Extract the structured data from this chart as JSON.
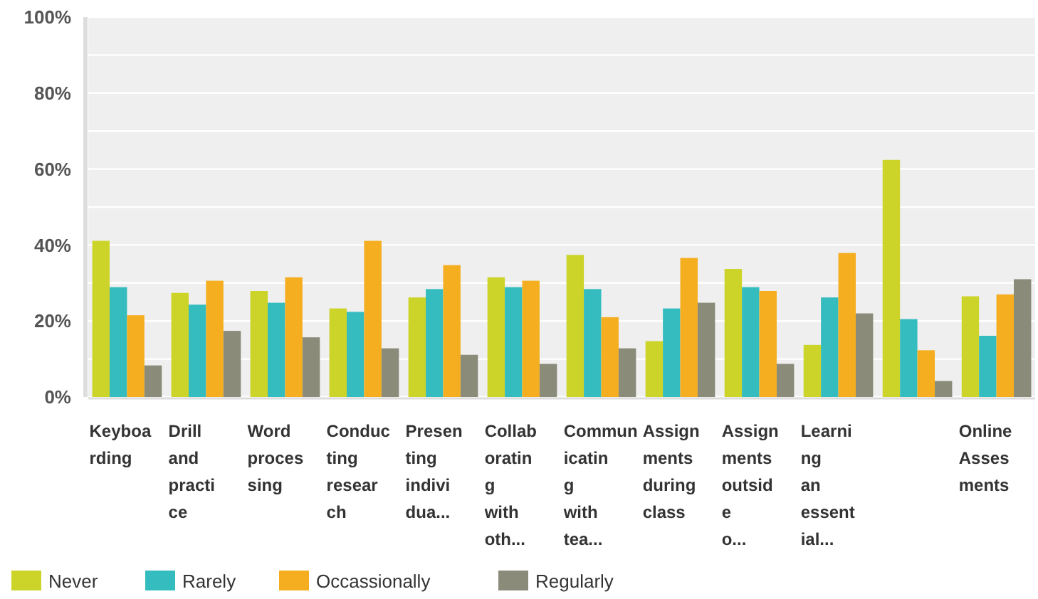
{
  "chart_data": {
    "type": "bar",
    "categories": [
      "Keyboa\nrding",
      "Drill\nand\npracti\nce",
      "Word\nproces\nsing",
      "Conduc\nting\nresear\nch",
      "Presen\nting\nindivi\ndua...",
      "Collab\noratin\ng\nwith\noth...",
      "Commun\nicatin\ng\nwith\ntea...",
      "Assign\nments\nduring\nclass",
      "Assign\nments\noutsid\ne\no...",
      "Learni\nng\nan\nessent\nial...",
      null,
      "Online\nAsses\nments"
    ],
    "series": [
      {
        "name": "Never",
        "color": "#ccd42a",
        "values": [
          41.1,
          27.4,
          27.9,
          23.3,
          26.2,
          31.5,
          37.4,
          14.7,
          33.7,
          13.7,
          62.4,
          26.5
        ]
      },
      {
        "name": "Rarely",
        "color": "#35bcbf",
        "values": [
          28.9,
          24.3,
          24.8,
          22.4,
          28.4,
          28.9,
          28.4,
          23.3,
          28.9,
          26.2,
          20.5,
          16.1
        ]
      },
      {
        "name": "Occassionally",
        "color": "#f5ae20",
        "values": [
          21.5,
          30.6,
          31.5,
          41.1,
          34.7,
          30.6,
          21.0,
          36.6,
          27.9,
          37.9,
          12.3,
          27.0
        ]
      },
      {
        "name": "Regularly",
        "color": "#8b8b7a",
        "values": [
          8.3,
          17.4,
          15.7,
          12.8,
          11.1,
          8.7,
          12.8,
          24.8,
          8.7,
          22.0,
          4.2,
          31.0
        ]
      }
    ],
    "ylim": [
      0,
      100
    ],
    "yticks": [
      {
        "value": 0,
        "label": "0%"
      },
      {
        "value": 10,
        "label": null
      },
      {
        "value": 20,
        "label": "20%"
      },
      {
        "value": 30,
        "label": null
      },
      {
        "value": 40,
        "label": "40%"
      },
      {
        "value": 50,
        "label": null
      },
      {
        "value": 60,
        "label": "60%"
      },
      {
        "value": 70,
        "label": null
      },
      {
        "value": 80,
        "label": "80%"
      },
      {
        "value": 90,
        "label": null
      },
      {
        "value": 100,
        "label": "100%"
      }
    ],
    "grid": "y",
    "legend": "bottom"
  }
}
